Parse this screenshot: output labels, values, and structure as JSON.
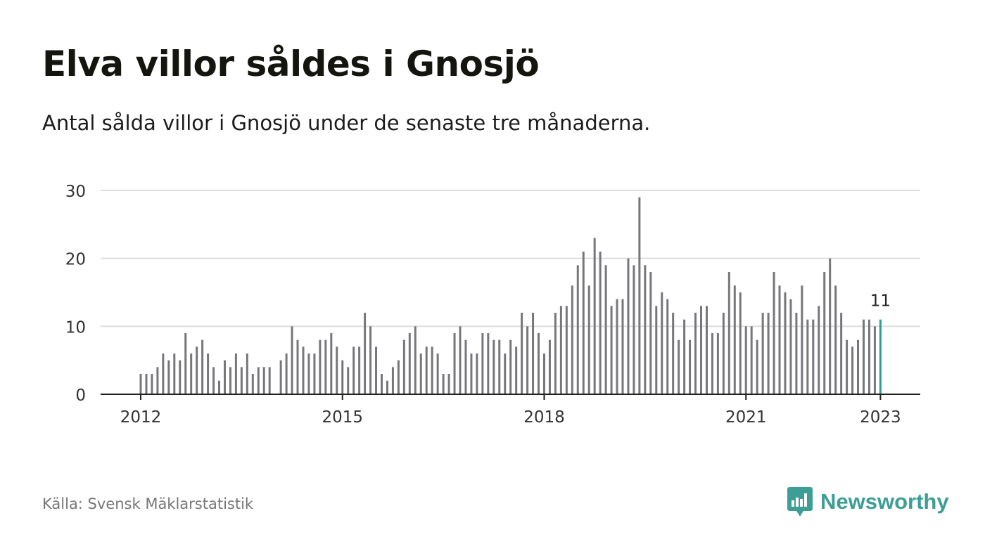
{
  "title": "Elva villor såldes i Gnosjö",
  "subtitle": "Antal sålda villor i Gnosjö under de senaste tre månaderna.",
  "source": "Källa: Svensk Mäklarstatistik",
  "brand": {
    "name": "Newsworthy",
    "icon": "newsworthy-logo-icon",
    "color": "#3d9e96"
  },
  "colors": {
    "bar": "#77767b",
    "highlight": "#2e9e8f",
    "grid": "#dddddd",
    "axis": "#222222",
    "text": "#333333"
  },
  "chart_data": {
    "type": "bar",
    "title": "Elva villor såldes i Gnosjö",
    "xlabel": "",
    "ylabel": "",
    "ylim": [
      0,
      30
    ],
    "yticks": [
      0,
      10,
      20,
      30
    ],
    "xticks": [
      {
        "label": "2012",
        "date": "2012-01"
      },
      {
        "label": "2015",
        "date": "2015-01"
      },
      {
        "label": "2018",
        "date": "2018-01"
      },
      {
        "label": "2021",
        "date": "2021-01"
      },
      {
        "label": "2023",
        "date": "2023-01"
      }
    ],
    "categories": [
      "2012-01",
      "2012-02",
      "2012-03",
      "2012-04",
      "2012-05",
      "2012-06",
      "2012-07",
      "2012-08",
      "2012-09",
      "2012-10",
      "2012-11",
      "2012-12",
      "2013-01",
      "2013-02",
      "2013-03",
      "2013-04",
      "2013-05",
      "2013-06",
      "2013-07",
      "2013-08",
      "2013-09",
      "2013-10",
      "2013-11",
      "2013-12",
      "2014-01",
      "2014-02",
      "2014-03",
      "2014-04",
      "2014-05",
      "2014-06",
      "2014-07",
      "2014-08",
      "2014-09",
      "2014-10",
      "2014-11",
      "2014-12",
      "2015-01",
      "2015-02",
      "2015-03",
      "2015-04",
      "2015-05",
      "2015-06",
      "2015-07",
      "2015-08",
      "2015-09",
      "2015-10",
      "2015-11",
      "2015-12",
      "2016-01",
      "2016-02",
      "2016-03",
      "2016-04",
      "2016-05",
      "2016-06",
      "2016-07",
      "2016-08",
      "2016-09",
      "2016-10",
      "2016-11",
      "2016-12",
      "2017-01",
      "2017-02",
      "2017-03",
      "2017-04",
      "2017-05",
      "2017-06",
      "2017-07",
      "2017-08",
      "2017-09",
      "2017-10",
      "2017-11",
      "2017-12",
      "2018-01",
      "2018-02",
      "2018-03",
      "2018-04",
      "2018-05",
      "2018-06",
      "2018-07",
      "2018-08",
      "2018-09",
      "2018-10",
      "2018-11",
      "2018-12",
      "2019-01",
      "2019-02",
      "2019-03",
      "2019-04",
      "2019-05",
      "2019-06",
      "2019-07",
      "2019-08",
      "2019-09",
      "2019-10",
      "2019-11",
      "2019-12",
      "2020-01",
      "2020-02",
      "2020-03",
      "2020-04",
      "2020-05",
      "2020-06",
      "2020-07",
      "2020-08",
      "2020-09",
      "2020-10",
      "2020-11",
      "2020-12",
      "2021-01",
      "2021-02",
      "2021-03",
      "2021-04",
      "2021-05",
      "2021-06",
      "2021-07",
      "2021-08",
      "2021-09",
      "2021-10",
      "2021-11",
      "2021-12",
      "2022-01",
      "2022-02",
      "2022-03",
      "2022-04",
      "2022-05",
      "2022-06",
      "2022-07",
      "2022-08",
      "2022-09",
      "2022-10",
      "2022-11",
      "2022-12",
      "2023-01"
    ],
    "values": [
      3,
      3,
      3,
      4,
      6,
      5,
      6,
      5,
      9,
      6,
      7,
      8,
      6,
      4,
      2,
      5,
      4,
      6,
      4,
      6,
      3,
      4,
      4,
      4,
      null,
      5,
      6,
      10,
      8,
      7,
      6,
      6,
      8,
      8,
      9,
      7,
      5,
      4,
      7,
      7,
      12,
      10,
      7,
      3,
      2,
      4,
      5,
      8,
      9,
      10,
      6,
      7,
      7,
      6,
      3,
      3,
      9,
      10,
      8,
      6,
      6,
      9,
      9,
      8,
      8,
      6,
      8,
      7,
      12,
      10,
      12,
      9,
      6,
      8,
      12,
      13,
      13,
      16,
      19,
      21,
      16,
      23,
      21,
      19,
      13,
      14,
      14,
      20,
      19,
      29,
      19,
      18,
      13,
      15,
      14,
      12,
      8,
      11,
      8,
      12,
      13,
      13,
      9,
      9,
      12,
      18,
      16,
      15,
      10,
      10,
      8,
      12,
      12,
      18,
      16,
      15,
      14,
      12,
      16,
      11,
      11,
      13,
      18,
      20,
      16,
      12,
      8,
      7,
      8,
      11,
      11,
      10,
      11
    ],
    "highlight": {
      "index": 132,
      "label": "11"
    },
    "grid": true,
    "legend": "none"
  }
}
